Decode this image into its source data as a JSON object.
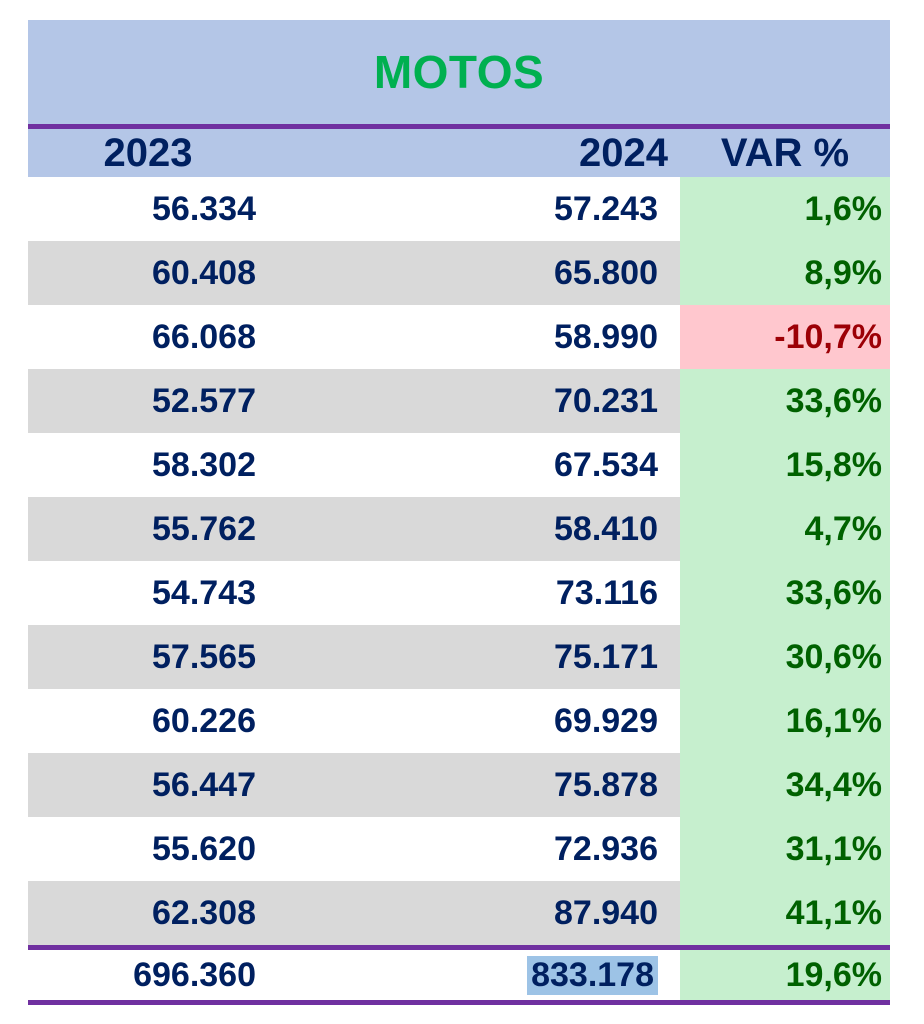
{
  "title": "MOTOS",
  "headers": {
    "y2023": "2023",
    "y2024": "2024",
    "var": "VAR %"
  },
  "rows": [
    {
      "y2023": "56.334",
      "y2024": "57.243",
      "var": "1,6%"
    },
    {
      "y2023": "60.408",
      "y2024": "65.800",
      "var": "8,9%"
    },
    {
      "y2023": "66.068",
      "y2024": "58.990",
      "var": "-10,7%"
    },
    {
      "y2023": "52.577",
      "y2024": "70.231",
      "var": "33,6%"
    },
    {
      "y2023": "58.302",
      "y2024": "67.534",
      "var": "15,8%"
    },
    {
      "y2023": "55.762",
      "y2024": "58.410",
      "var": "4,7%"
    },
    {
      "y2023": "54.743",
      "y2024": "73.116",
      "var": "33,6%"
    },
    {
      "y2023": "57.565",
      "y2024": "75.171",
      "var": "30,6%"
    },
    {
      "y2023": "60.226",
      "y2024": "69.929",
      "var": "16,1%"
    },
    {
      "y2023": "56.447",
      "y2024": "75.878",
      "var": "34,4%"
    },
    {
      "y2023": "55.620",
      "y2024": "72.936",
      "var": "31,1%"
    },
    {
      "y2023": "62.308",
      "y2024": "87.940",
      "var": "41,1%"
    }
  ],
  "total": {
    "y2023": "696.360",
    "y2024": "833.178",
    "var": "19,6%"
  },
  "colors": {
    "title": "#00b050",
    "header_bg": "#b4c6e7",
    "border": "#7030a0",
    "text": "#002060",
    "positive_bg": "#c6efce",
    "positive_text": "#006100",
    "negative_bg": "#ffc7ce",
    "negative_text": "#9c0006"
  }
}
